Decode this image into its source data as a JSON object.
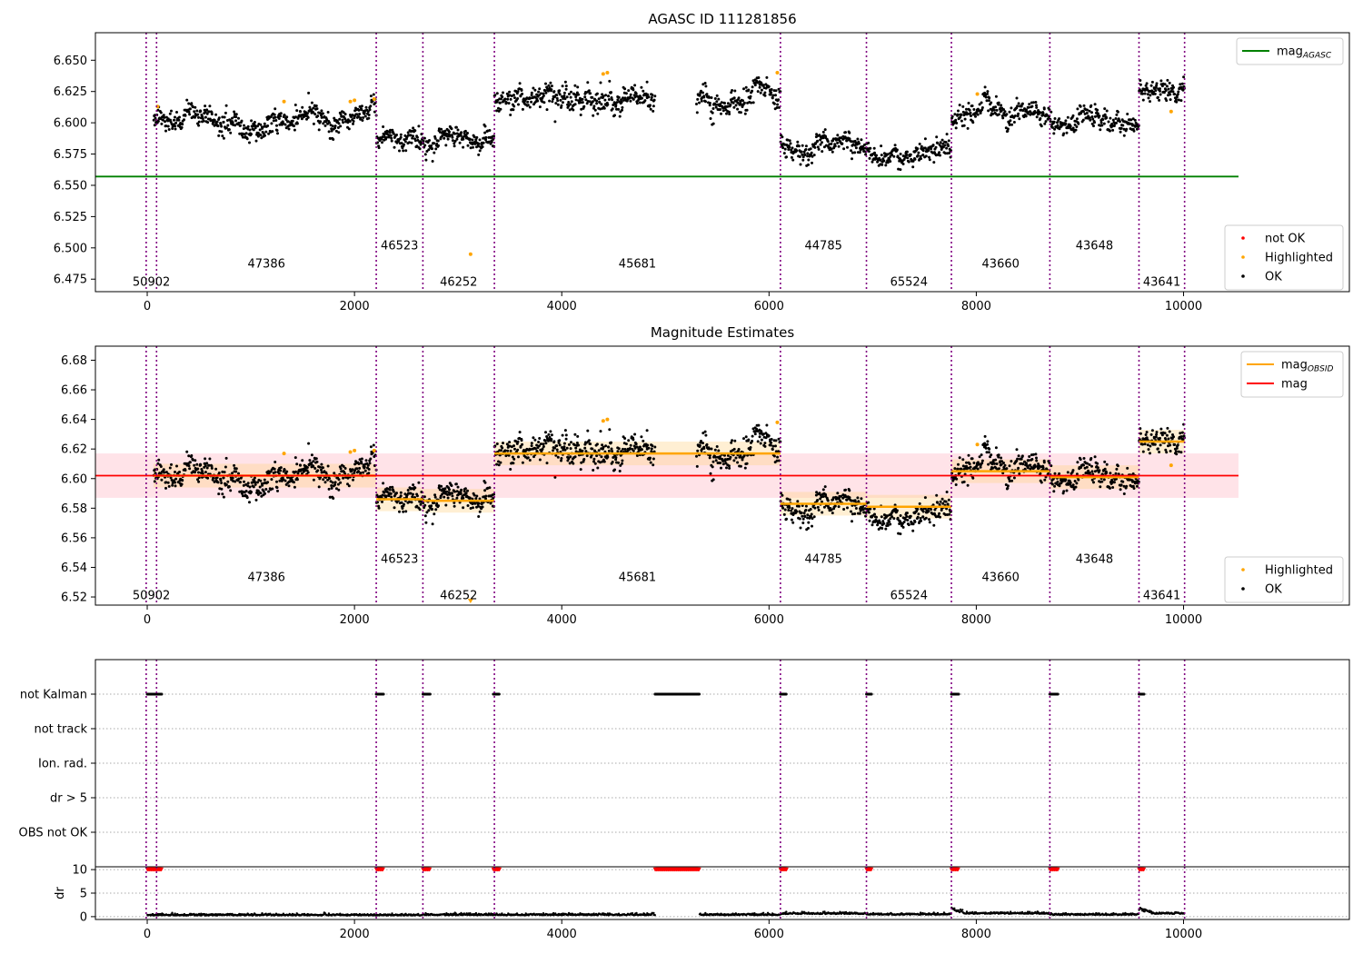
{
  "figure": {
    "panel1_title": "AGASC ID 111281856",
    "panel2_title": "Magnitude Estimates"
  },
  "colors": {
    "ok": "#000000",
    "highlighted": "#ffa500",
    "not_ok": "#ff0000",
    "agasc_line": "#008000",
    "obsid_line": "#ffa500",
    "mag_line": "#ff0000",
    "obsid_boundary": "#800080",
    "mag_band": "#ffc0cb"
  },
  "legends": {
    "p1_upper": [
      {
        "label": "mag",
        "sub": "AGASC",
        "kind": "line",
        "color": "#008000"
      }
    ],
    "p1_lower": [
      {
        "label": "not OK",
        "kind": "dot",
        "color": "#ff0000"
      },
      {
        "label": "Highlighted",
        "kind": "dot",
        "color": "#ffa500"
      },
      {
        "label": "OK",
        "kind": "dot",
        "color": "#000000"
      }
    ],
    "p2_upper": [
      {
        "label": "mag",
        "sub": "OBSID",
        "kind": "line",
        "color": "#ffa500"
      },
      {
        "label": "mag",
        "kind": "line",
        "color": "#ff0000"
      }
    ],
    "p2_lower": [
      {
        "label": "Highlighted",
        "kind": "dot",
        "color": "#ffa500"
      },
      {
        "label": "OK",
        "kind": "dot",
        "color": "#000000"
      }
    ]
  },
  "chart_data": [
    {
      "type": "scatter",
      "title": "AGASC ID 111281856",
      "xlim": [
        -500,
        11600
      ],
      "ylim": [
        6.465,
        6.672
      ],
      "xticks": [
        0,
        2000,
        4000,
        6000,
        8000,
        10000
      ],
      "yticks": [
        6.475,
        6.5,
        6.525,
        6.55,
        6.575,
        6.6,
        6.625,
        6.65
      ],
      "ytick_labels": [
        "6.475",
        "6.500",
        "6.525",
        "6.550",
        "6.575",
        "6.600",
        "6.625",
        "6.650"
      ],
      "boundaries": [
        -10,
        90,
        2210,
        2660,
        3350,
        6110,
        6940,
        7760,
        8710,
        9570,
        10010
      ],
      "obsid_labels": [
        {
          "text": "50902",
          "x": 40,
          "y": 6.4735
        },
        {
          "text": "47386",
          "x": 1150,
          "y": 6.488
        },
        {
          "text": "46523",
          "x": 2435,
          "y": 6.5025
        },
        {
          "text": "46252",
          "x": 3005,
          "y": 6.4735
        },
        {
          "text": "45681",
          "x": 4730,
          "y": 6.488
        },
        {
          "text": "44785",
          "x": 6525,
          "y": 6.5025
        },
        {
          "text": "65524",
          "x": 7350,
          "y": 6.4735
        },
        {
          "text": "43660",
          "x": 8235,
          "y": 6.488
        },
        {
          "text": "43648",
          "x": 9140,
          "y": 6.5025
        },
        {
          "text": "43641",
          "x": 9790,
          "y": 6.4735
        }
      ],
      "segments": [
        {
          "start": 60,
          "end": 2210,
          "mean": 6.6035,
          "noise": 0.0095
        },
        {
          "start": 2210,
          "end": 2660,
          "mean": 6.5865,
          "noise": 0.0085
        },
        {
          "start": 2660,
          "end": 3350,
          "mean": 6.5845,
          "noise": 0.0095
        },
        {
          "start": 3350,
          "end": 4900,
          "mean": 6.6175,
          "noise": 0.0105
        },
        {
          "start": 5300,
          "end": 6110,
          "mean": 6.6175,
          "noise": 0.0105
        },
        {
          "start": 6110,
          "end": 6940,
          "mean": 6.5835,
          "noise": 0.0085
        },
        {
          "start": 6940,
          "end": 7760,
          "mean": 6.5805,
          "noise": 0.0085
        },
        {
          "start": 7760,
          "end": 8710,
          "mean": 6.6055,
          "noise": 0.0095
        },
        {
          "start": 8710,
          "end": 9570,
          "mean": 6.6005,
          "noise": 0.0095
        },
        {
          "start": 9570,
          "end": 10010,
          "mean": 6.6255,
          "noise": 0.0085
        }
      ],
      "highlighted_points": [
        {
          "x": 100,
          "y": 6.613
        },
        {
          "x": 1320,
          "y": 6.617
        },
        {
          "x": 1960,
          "y": 6.617
        },
        {
          "x": 2000,
          "y": 6.618
        },
        {
          "x": 2190,
          "y": 6.619
        },
        {
          "x": 3120,
          "y": 6.495
        },
        {
          "x": 4400,
          "y": 6.639
        },
        {
          "x": 4440,
          "y": 6.64
        },
        {
          "x": 6080,
          "y": 6.64
        },
        {
          "x": 8010,
          "y": 6.623
        },
        {
          "x": 9880,
          "y": 6.609
        }
      ],
      "mag_agasc": 6.557,
      "mag_agasc_xrange": [
        -500,
        10530
      ]
    },
    {
      "type": "scatter",
      "title": "Magnitude Estimates",
      "xlim": [
        -500,
        11600
      ],
      "ylim": [
        6.5145,
        6.6895
      ],
      "xticks": [
        0,
        2000,
        4000,
        6000,
        8000,
        10000
      ],
      "yticks": [
        6.52,
        6.54,
        6.56,
        6.58,
        6.6,
        6.62,
        6.64,
        6.66,
        6.68
      ],
      "ytick_labels": [
        "6.52",
        "6.54",
        "6.56",
        "6.58",
        "6.60",
        "6.62",
        "6.64",
        "6.66",
        "6.68"
      ],
      "mag": 6.602,
      "mag_band": [
        6.587,
        6.617
      ],
      "mag_xrange": [
        -500,
        10530
      ],
      "mag_obsid": [
        {
          "start": 60,
          "end": 2210,
          "value": 6.602
        },
        {
          "start": 2210,
          "end": 2660,
          "value": 6.586
        },
        {
          "start": 2660,
          "end": 3350,
          "value": 6.585
        },
        {
          "start": 3350,
          "end": 6110,
          "value": 6.617
        },
        {
          "start": 6110,
          "end": 6940,
          "value": 6.583
        },
        {
          "start": 6940,
          "end": 7760,
          "value": 6.581
        },
        {
          "start": 7760,
          "end": 8710,
          "value": 6.605
        },
        {
          "start": 8710,
          "end": 9570,
          "value": 6.601
        },
        {
          "start": 9570,
          "end": 10010,
          "value": 6.625
        }
      ],
      "highlighted_points": [
        {
          "x": 1320,
          "y": 6.617
        },
        {
          "x": 1960,
          "y": 6.618
        },
        {
          "x": 2000,
          "y": 6.619
        },
        {
          "x": 2190,
          "y": 6.619
        },
        {
          "x": 4400,
          "y": 6.639
        },
        {
          "x": 4440,
          "y": 6.64
        },
        {
          "x": 6080,
          "y": 6.638
        },
        {
          "x": 8010,
          "y": 6.623
        },
        {
          "x": 9880,
          "y": 6.609
        }
      ],
      "below_range_marker": {
        "x": 3120
      }
    },
    {
      "type": "scatter",
      "title": "",
      "xlim": [
        -500,
        11600
      ],
      "categories": [
        "not Kalman",
        "not track",
        "Ion. rad.",
        "dr > 5",
        "OBS not OK"
      ],
      "not_kalman_ranges": [
        [
          0,
          140
        ],
        [
          2210,
          2280
        ],
        [
          2660,
          2730
        ],
        [
          3340,
          3400
        ],
        [
          4900,
          5330
        ],
        [
          6110,
          6170
        ],
        [
          6940,
          6990
        ],
        [
          7760,
          7830
        ],
        [
          8710,
          8790
        ],
        [
          9570,
          9620
        ]
      ]
    },
    {
      "type": "scatter",
      "title": "",
      "ylabel": "dr",
      "xlim": [
        -500,
        11600
      ],
      "ylim": [
        -0.6,
        10.6
      ],
      "xticks": [
        0,
        2000,
        4000,
        6000,
        8000,
        10000
      ],
      "yticks": [
        0,
        5,
        10
      ],
      "dr_clipped_value": 10,
      "dr_clipped_ranges": [
        [
          0,
          140
        ],
        [
          2210,
          2280
        ],
        [
          2660,
          2730
        ],
        [
          3340,
          3400
        ],
        [
          4900,
          5330
        ],
        [
          6110,
          6170
        ],
        [
          6940,
          6990
        ],
        [
          7760,
          7830
        ],
        [
          8710,
          8790
        ],
        [
          9570,
          9620
        ]
      ],
      "dr_segments": [
        {
          "start": 0,
          "end": 2210,
          "base": 0.25
        },
        {
          "start": 2210,
          "end": 2660,
          "base": 0.25
        },
        {
          "start": 2660,
          "end": 3350,
          "base": 0.3
        },
        {
          "start": 3350,
          "end": 4900,
          "base": 0.3
        },
        {
          "start": 5330,
          "end": 6110,
          "base": 0.3
        },
        {
          "start": 6110,
          "end": 6940,
          "base": 0.55
        },
        {
          "start": 6940,
          "end": 7760,
          "base": 0.4
        },
        {
          "start": 7760,
          "end": 8710,
          "base": 0.6
        },
        {
          "start": 8710,
          "end": 9570,
          "base": 0.35
        },
        {
          "start": 9570,
          "end": 10010,
          "base": 0.6
        }
      ]
    }
  ]
}
